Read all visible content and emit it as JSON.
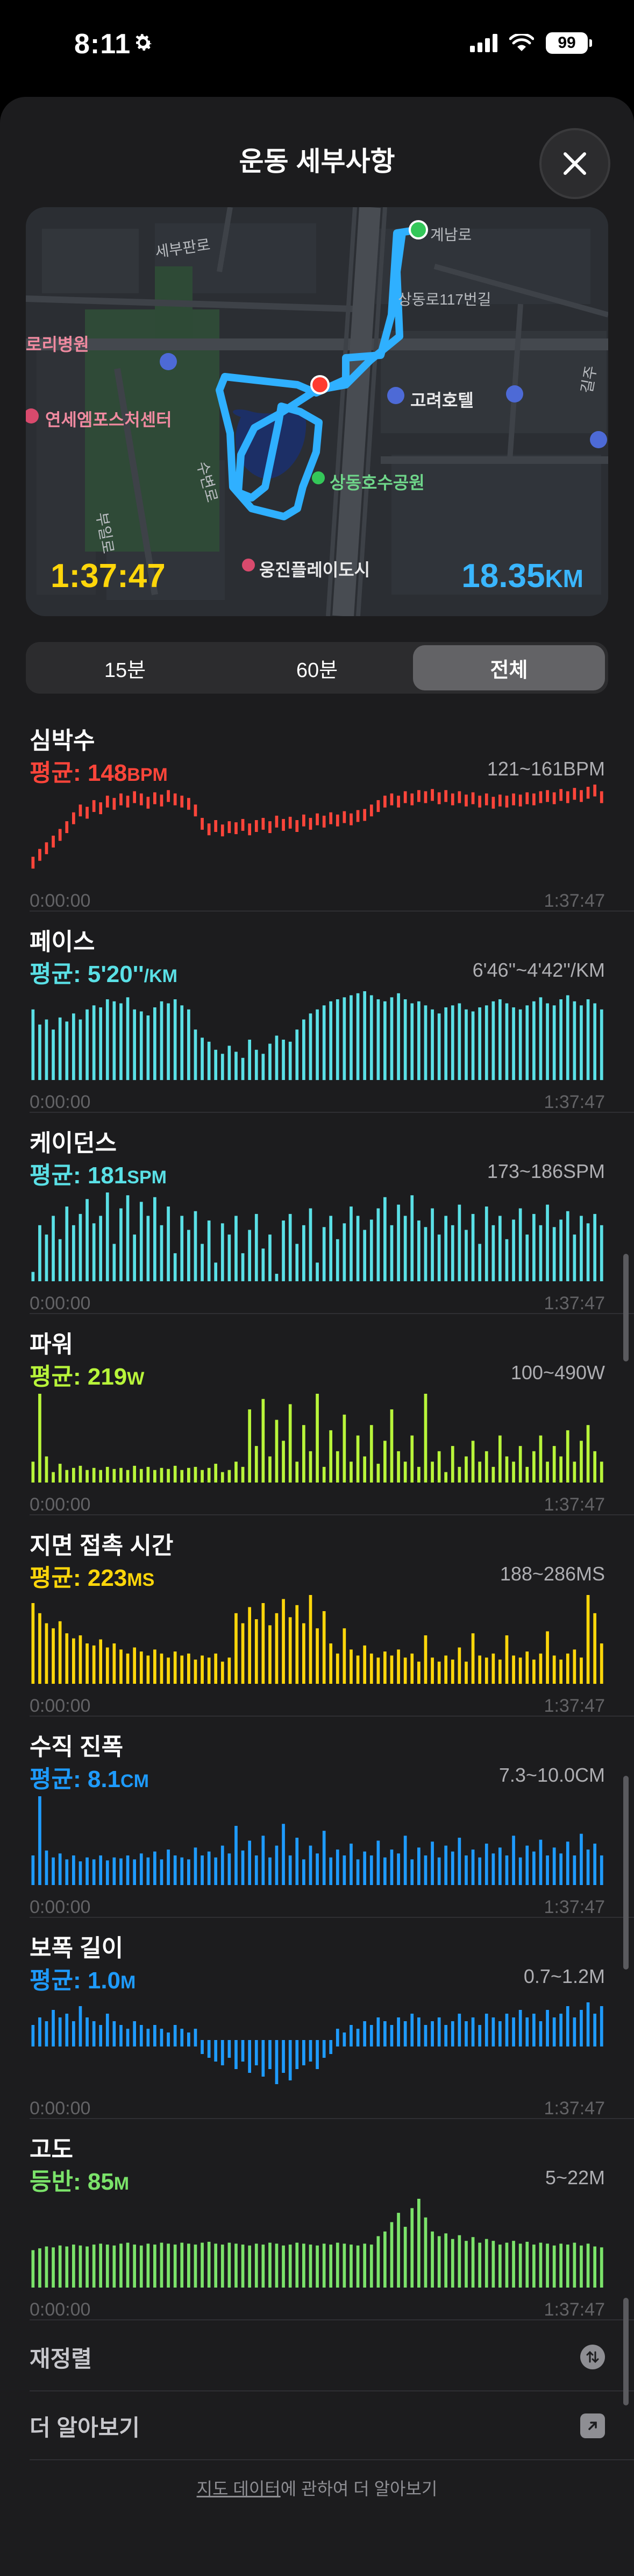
{
  "status": {
    "time": "8:11",
    "battery": "99"
  },
  "header": {
    "title": "운동 세부사항",
    "close_icon": "close-icon"
  },
  "map": {
    "labels": {
      "gyeyang": "계남로",
      "sangdong117": "상동로117번길",
      "hospital": "로리병원",
      "sports": "연세엠포스처센터",
      "hotel": "고려호텔",
      "park": "상동호수공원",
      "city": "웅진플레이도시",
      "road_n": "세부판로",
      "road_w": "수변로",
      "road_s": "부일로",
      "gil": "길주"
    },
    "elapsed": "1:37:47",
    "distance": "18.35",
    "distance_unit": "KM"
  },
  "segments": [
    {
      "label": "15분",
      "active": false
    },
    {
      "label": "60분",
      "active": false
    },
    {
      "label": "전체",
      "active": true
    }
  ],
  "metrics": [
    {
      "title": "심박수",
      "avg_prefix": "평균: ",
      "avg_value": "148",
      "avg_unit": "BPM",
      "range": "121~161BPM",
      "color": "#ff453a",
      "type": "line",
      "series": [
        15,
        22,
        28,
        34,
        40,
        47,
        55,
        62,
        60,
        66,
        64,
        70,
        68,
        72,
        70,
        74,
        72,
        69,
        73,
        71,
        75,
        72,
        70,
        68,
        62,
        50,
        45,
        48,
        44,
        47,
        46,
        49,
        45,
        48,
        50,
        47,
        52,
        49,
        51,
        48,
        53,
        50,
        54,
        52,
        55,
        53,
        56,
        54,
        57,
        58,
        62,
        66,
        70,
        72,
        70,
        74,
        72,
        75,
        74,
        76,
        73,
        75,
        72,
        74,
        71,
        73,
        70,
        72,
        69,
        71,
        70,
        72,
        71,
        73,
        72,
        74,
        75,
        73,
        76,
        74,
        77,
        75,
        78,
        80,
        74
      ],
      "start": "0:00:00",
      "end": "1:37:47"
    },
    {
      "title": "페이스",
      "avg_prefix": "평균: ",
      "avg_value": "5'20''",
      "avg_unit": "/KM",
      "range": "6'46''~4'42''/KM",
      "color": "#5ae0e6",
      "type": "bar",
      "series": [
        70,
        55,
        60,
        50,
        62,
        58,
        66,
        60,
        70,
        74,
        72,
        80,
        78,
        76,
        82,
        70,
        68,
        64,
        72,
        78,
        76,
        80,
        74,
        70,
        50,
        42,
        38,
        30,
        26,
        34,
        28,
        22,
        40,
        30,
        26,
        36,
        44,
        40,
        38,
        50,
        60,
        66,
        70,
        74,
        78,
        80,
        82,
        84,
        86,
        88,
        84,
        80,
        78,
        82,
        86,
        80,
        76,
        78,
        74,
        70,
        66,
        72,
        74,
        76,
        70,
        68,
        72,
        74,
        78,
        80,
        76,
        72,
        70,
        74,
        78,
        82,
        76,
        74,
        80,
        84,
        78,
        74,
        80,
        76,
        70
      ],
      "start": "0:00:00",
      "end": "1:37:47"
    },
    {
      "title": "케이던스",
      "avg_prefix": "평균: ",
      "avg_value": "181",
      "avg_unit": "SPM",
      "range": "173~186SPM",
      "color": "#5ae0e6",
      "type": "bar",
      "series": [
        10,
        60,
        50,
        70,
        45,
        80,
        60,
        72,
        88,
        62,
        70,
        95,
        40,
        78,
        92,
        50,
        85,
        70,
        90,
        60,
        80,
        30,
        70,
        55,
        75,
        40,
        65,
        20,
        62,
        50,
        70,
        30,
        55,
        72,
        35,
        50,
        8,
        65,
        72,
        40,
        60,
        78,
        20,
        58,
        70,
        45,
        62,
        80,
        70,
        55,
        66,
        78,
        90,
        60,
        82,
        70,
        92,
        65,
        58,
        78,
        50,
        70,
        60,
        82,
        55,
        72,
        40,
        80,
        60,
        70,
        45,
        66,
        78,
        50,
        72,
        60,
        82,
        58,
        66,
        75,
        50,
        70,
        62,
        72,
        60
      ],
      "start": "0:00:00",
      "end": "1:37:47"
    },
    {
      "title": "파워",
      "avg_prefix": "평균: ",
      "avg_value": "219",
      "avg_unit": "W",
      "range": "100~490W",
      "color": "#b8f53a",
      "type": "bar",
      "series": [
        20,
        85,
        25,
        10,
        18,
        12,
        14,
        16,
        12,
        14,
        12,
        15,
        13,
        14,
        12,
        16,
        13,
        15,
        12,
        14,
        13,
        16,
        12,
        14,
        15,
        12,
        14,
        18,
        10,
        12,
        20,
        15,
        70,
        35,
        80,
        25,
        60,
        40,
        75,
        20,
        55,
        30,
        85,
        15,
        50,
        30,
        65,
        20,
        45,
        25,
        55,
        18,
        40,
        70,
        30,
        20,
        45,
        15,
        85,
        20,
        30,
        10,
        35,
        15,
        25,
        40,
        20,
        30,
        15,
        45,
        25,
        20,
        35,
        15,
        30,
        45,
        20,
        35,
        25,
        50,
        20,
        40,
        55,
        30,
        20
      ],
      "start": "0:00:00",
      "end": "1:37:47"
    },
    {
      "title": "지면 접촉 시간",
      "avg_prefix": "평균: ",
      "avg_value": "223",
      "avg_unit": "MS",
      "range": "188~286MS",
      "color": "#ffd60a",
      "type": "bar",
      "series": [
        80,
        70,
        60,
        55,
        62,
        50,
        45,
        48,
        40,
        38,
        44,
        36,
        40,
        34,
        30,
        36,
        32,
        28,
        34,
        30,
        26,
        32,
        28,
        30,
        24,
        28,
        26,
        30,
        22,
        26,
        70,
        60,
        76,
        64,
        80,
        58,
        70,
        84,
        66,
        78,
        60,
        88,
        55,
        72,
        40,
        30,
        55,
        34,
        28,
        38,
        30,
        26,
        32,
        28,
        34,
        26,
        30,
        22,
        48,
        26,
        22,
        28,
        24,
        36,
        22,
        50,
        28,
        26,
        30,
        24,
        48,
        28,
        26,
        32,
        24,
        30,
        52,
        28,
        24,
        30,
        34,
        26,
        88,
        70,
        40
      ],
      "start": "0:00:00",
      "end": "1:37:47"
    },
    {
      "title": "수직 진폭",
      "avg_prefix": "평균: ",
      "avg_value": "8.1",
      "avg_unit": "CM",
      "range": "7.3~10.0CM",
      "color": "#1e9bff",
      "type": "bar",
      "series": [
        30,
        90,
        35,
        28,
        32,
        26,
        30,
        24,
        28,
        26,
        30,
        25,
        28,
        27,
        30,
        26,
        32,
        28,
        34,
        26,
        36,
        30,
        28,
        26,
        38,
        30,
        34,
        28,
        40,
        32,
        60,
        35,
        45,
        30,
        50,
        28,
        40,
        62,
        30,
        48,
        26,
        40,
        32,
        55,
        28,
        36,
        30,
        42,
        26,
        34,
        30,
        45,
        28,
        36,
        32,
        50,
        26,
        38,
        30,
        44,
        28,
        40,
        34,
        48,
        30,
        36,
        28,
        42,
        32,
        38,
        30,
        50,
        28,
        40,
        34,
        46,
        30,
        38,
        32,
        44,
        30,
        52,
        36,
        42,
        30
      ],
      "start": "0:00:00",
      "end": "1:37:47"
    },
    {
      "title": "보폭 길이",
      "avg_prefix": "평균: ",
      "avg_value": "1.0",
      "avg_unit": "M",
      "range": "0.7~1.2M",
      "color": "#1e9bff",
      "type": "centered",
      "series": [
        4,
        6,
        5,
        8,
        6,
        7,
        5,
        9,
        6,
        5,
        4,
        7,
        5,
        4,
        3,
        5,
        4,
        3,
        4,
        3,
        2,
        4,
        3,
        2,
        3,
        -2,
        -3,
        -4,
        -5,
        -3,
        -6,
        -4,
        -7,
        -5,
        -8,
        -6,
        -10,
        -7,
        -9,
        -6,
        -5,
        -4,
        -6,
        -3,
        -2,
        3,
        2,
        4,
        3,
        5,
        4,
        6,
        5,
        4,
        6,
        5,
        7,
        6,
        4,
        5,
        6,
        4,
        5,
        7,
        5,
        6,
        4,
        7,
        6,
        5,
        7,
        6,
        8,
        6,
        7,
        5,
        8,
        6,
        7,
        9,
        6,
        8,
        10,
        7,
        9
      ],
      "start": "0:00:00",
      "end": "1:37:47"
    },
    {
      "title": "고도",
      "avg_prefix": "등반: ",
      "avg_value": "85",
      "avg_unit": "M",
      "range": "5~22M",
      "color": "#7be36a",
      "type": "bar",
      "series": [
        40,
        42,
        44,
        43,
        45,
        44,
        46,
        45,
        44,
        46,
        47,
        46,
        45,
        47,
        48,
        46,
        45,
        47,
        46,
        48,
        47,
        46,
        48,
        47,
        46,
        48,
        49,
        47,
        46,
        48,
        47,
        46,
        45,
        47,
        46,
        48,
        47,
        45,
        46,
        48,
        47,
        46,
        45,
        47,
        46,
        48,
        47,
        46,
        45,
        47,
        46,
        55,
        60,
        70,
        80,
        65,
        85,
        95,
        75,
        60,
        55,
        58,
        52,
        56,
        50,
        54,
        48,
        52,
        50,
        46,
        48,
        50,
        47,
        49,
        46,
        48,
        47,
        45,
        47,
        46,
        48,
        45,
        47,
        44,
        43
      ],
      "start": "0:00:00",
      "end": "1:37:47"
    }
  ],
  "rows": {
    "reorder": "재정렬",
    "learn_more": "더 알아보기"
  },
  "footer": {
    "link": "지도 데이터",
    "rest": "에 관하여 더 알아보기"
  }
}
